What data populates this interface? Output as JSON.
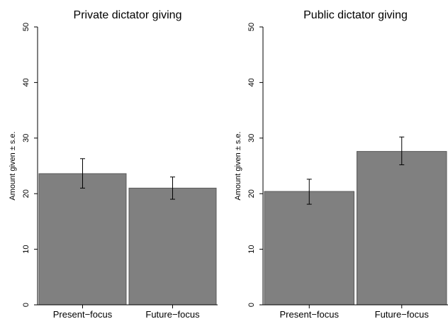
{
  "chart_data": [
    {
      "type": "bar",
      "title": "Private dictator giving",
      "ylabel": "Amount given ± s.e.",
      "categories": [
        "Present−focus",
        "Future−focus"
      ],
      "values": [
        23.6,
        21.0
      ],
      "error_low": [
        21.0,
        19.0
      ],
      "error_high": [
        26.3,
        23.0
      ],
      "ylim": [
        0,
        50
      ],
      "yticks": [
        0,
        10,
        20,
        30,
        40,
        50
      ],
      "grid": false,
      "bar_color": "#808080"
    },
    {
      "type": "bar",
      "title": "Public dictator giving",
      "ylabel": "Amount given ± s.e.",
      "categories": [
        "Present−focus",
        "Future−focus"
      ],
      "values": [
        20.4,
        27.6
      ],
      "error_low": [
        18.1,
        25.2
      ],
      "error_high": [
        22.6,
        30.2
      ],
      "ylim": [
        0,
        50
      ],
      "yticks": [
        0,
        10,
        20,
        30,
        40,
        50
      ],
      "grid": false,
      "bar_color": "#808080"
    }
  ]
}
